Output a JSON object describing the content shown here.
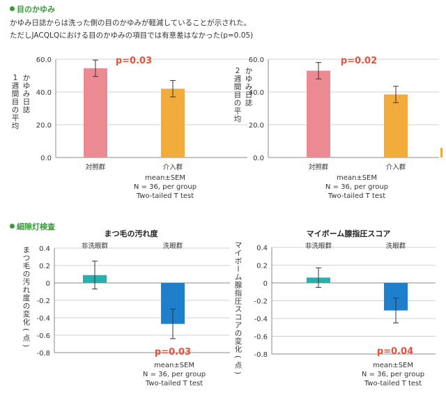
{
  "section1": {
    "title": "目のかゆみ",
    "line1": "かゆみ日誌からは洗った側の目のかゆみが軽減していることが示された。",
    "line2": "ただしJACQLQにおける目のかゆみの項目では有意差はなかった(p=0.05)"
  },
  "section2": {
    "title": "細隙灯検査"
  },
  "colors": {
    "control": "#ec8a94",
    "intervention": "#f2ac3b",
    "unwashed": "#27b0b0",
    "washed": "#1f7fcb",
    "pvalue": "#e2543c",
    "section": "#3a9a3a"
  },
  "chart_data": [
    {
      "type": "bar",
      "title": "",
      "ylabel": "かゆみ日誌 1週間目の平均",
      "ylim": [
        0,
        60
      ],
      "yticks": [
        "0.0",
        "20.0",
        "40.0",
        "60.0"
      ],
      "categories": [
        "対照群",
        "介入群"
      ],
      "values": [
        54.5,
        42.0
      ],
      "error": [
        5.0,
        5.0
      ],
      "pvalue": "p=0.03",
      "notes": [
        "mean±SEM",
        "N = 36, per group",
        "Two-tailed T test"
      ]
    },
    {
      "type": "bar",
      "title": "",
      "ylabel": "かゆみ日誌 2週間目の平均",
      "ylim": [
        0,
        60
      ],
      "yticks": [
        "0.0",
        "20.0",
        "40.0",
        "60.0"
      ],
      "categories": [
        "対照群",
        "介入群"
      ],
      "values": [
        53.0,
        38.5
      ],
      "error": [
        5.0,
        5.0
      ],
      "pvalue": "p=0.02",
      "notes": [
        "mean±SEM",
        "N = 36, per group",
        "Two-tailed T test"
      ]
    },
    {
      "type": "bar",
      "title": "まつ毛の汚れ度",
      "ylabel": "まつ毛の汚れ度の変化(点)",
      "ylim": [
        -0.8,
        0.4
      ],
      "yticks": [
        "-0.8",
        "-0.6",
        "-0.4",
        "-0.2",
        "0",
        "0.2",
        "0.4"
      ],
      "categories": [
        "非洗眼群",
        "洗眼群"
      ],
      "values": [
        0.09,
        -0.47
      ],
      "error": [
        0.16,
        0.17
      ],
      "pvalue": "p=0.03",
      "notes": [
        "mean±SEM",
        "N = 36, per group",
        "Two-tailed T test"
      ]
    },
    {
      "type": "bar",
      "title": "マイボーム腺指圧スコア",
      "ylabel": "マイボーム腺指圧スコアの変化(点)",
      "ylim": [
        -0.8,
        0.4
      ],
      "yticks": [
        "-0.8",
        "-0.6",
        "-0.4",
        "-0.2",
        "0",
        "0.2",
        "0.4"
      ],
      "categories": [
        "非洗眼群",
        "洗眼群"
      ],
      "values": [
        0.06,
        -0.31
      ],
      "error": [
        0.11,
        0.14
      ],
      "pvalue": "p=0.04",
      "notes": [
        "mean±SEM",
        "N = 36, per group",
        "Two-tailed T test"
      ]
    }
  ]
}
